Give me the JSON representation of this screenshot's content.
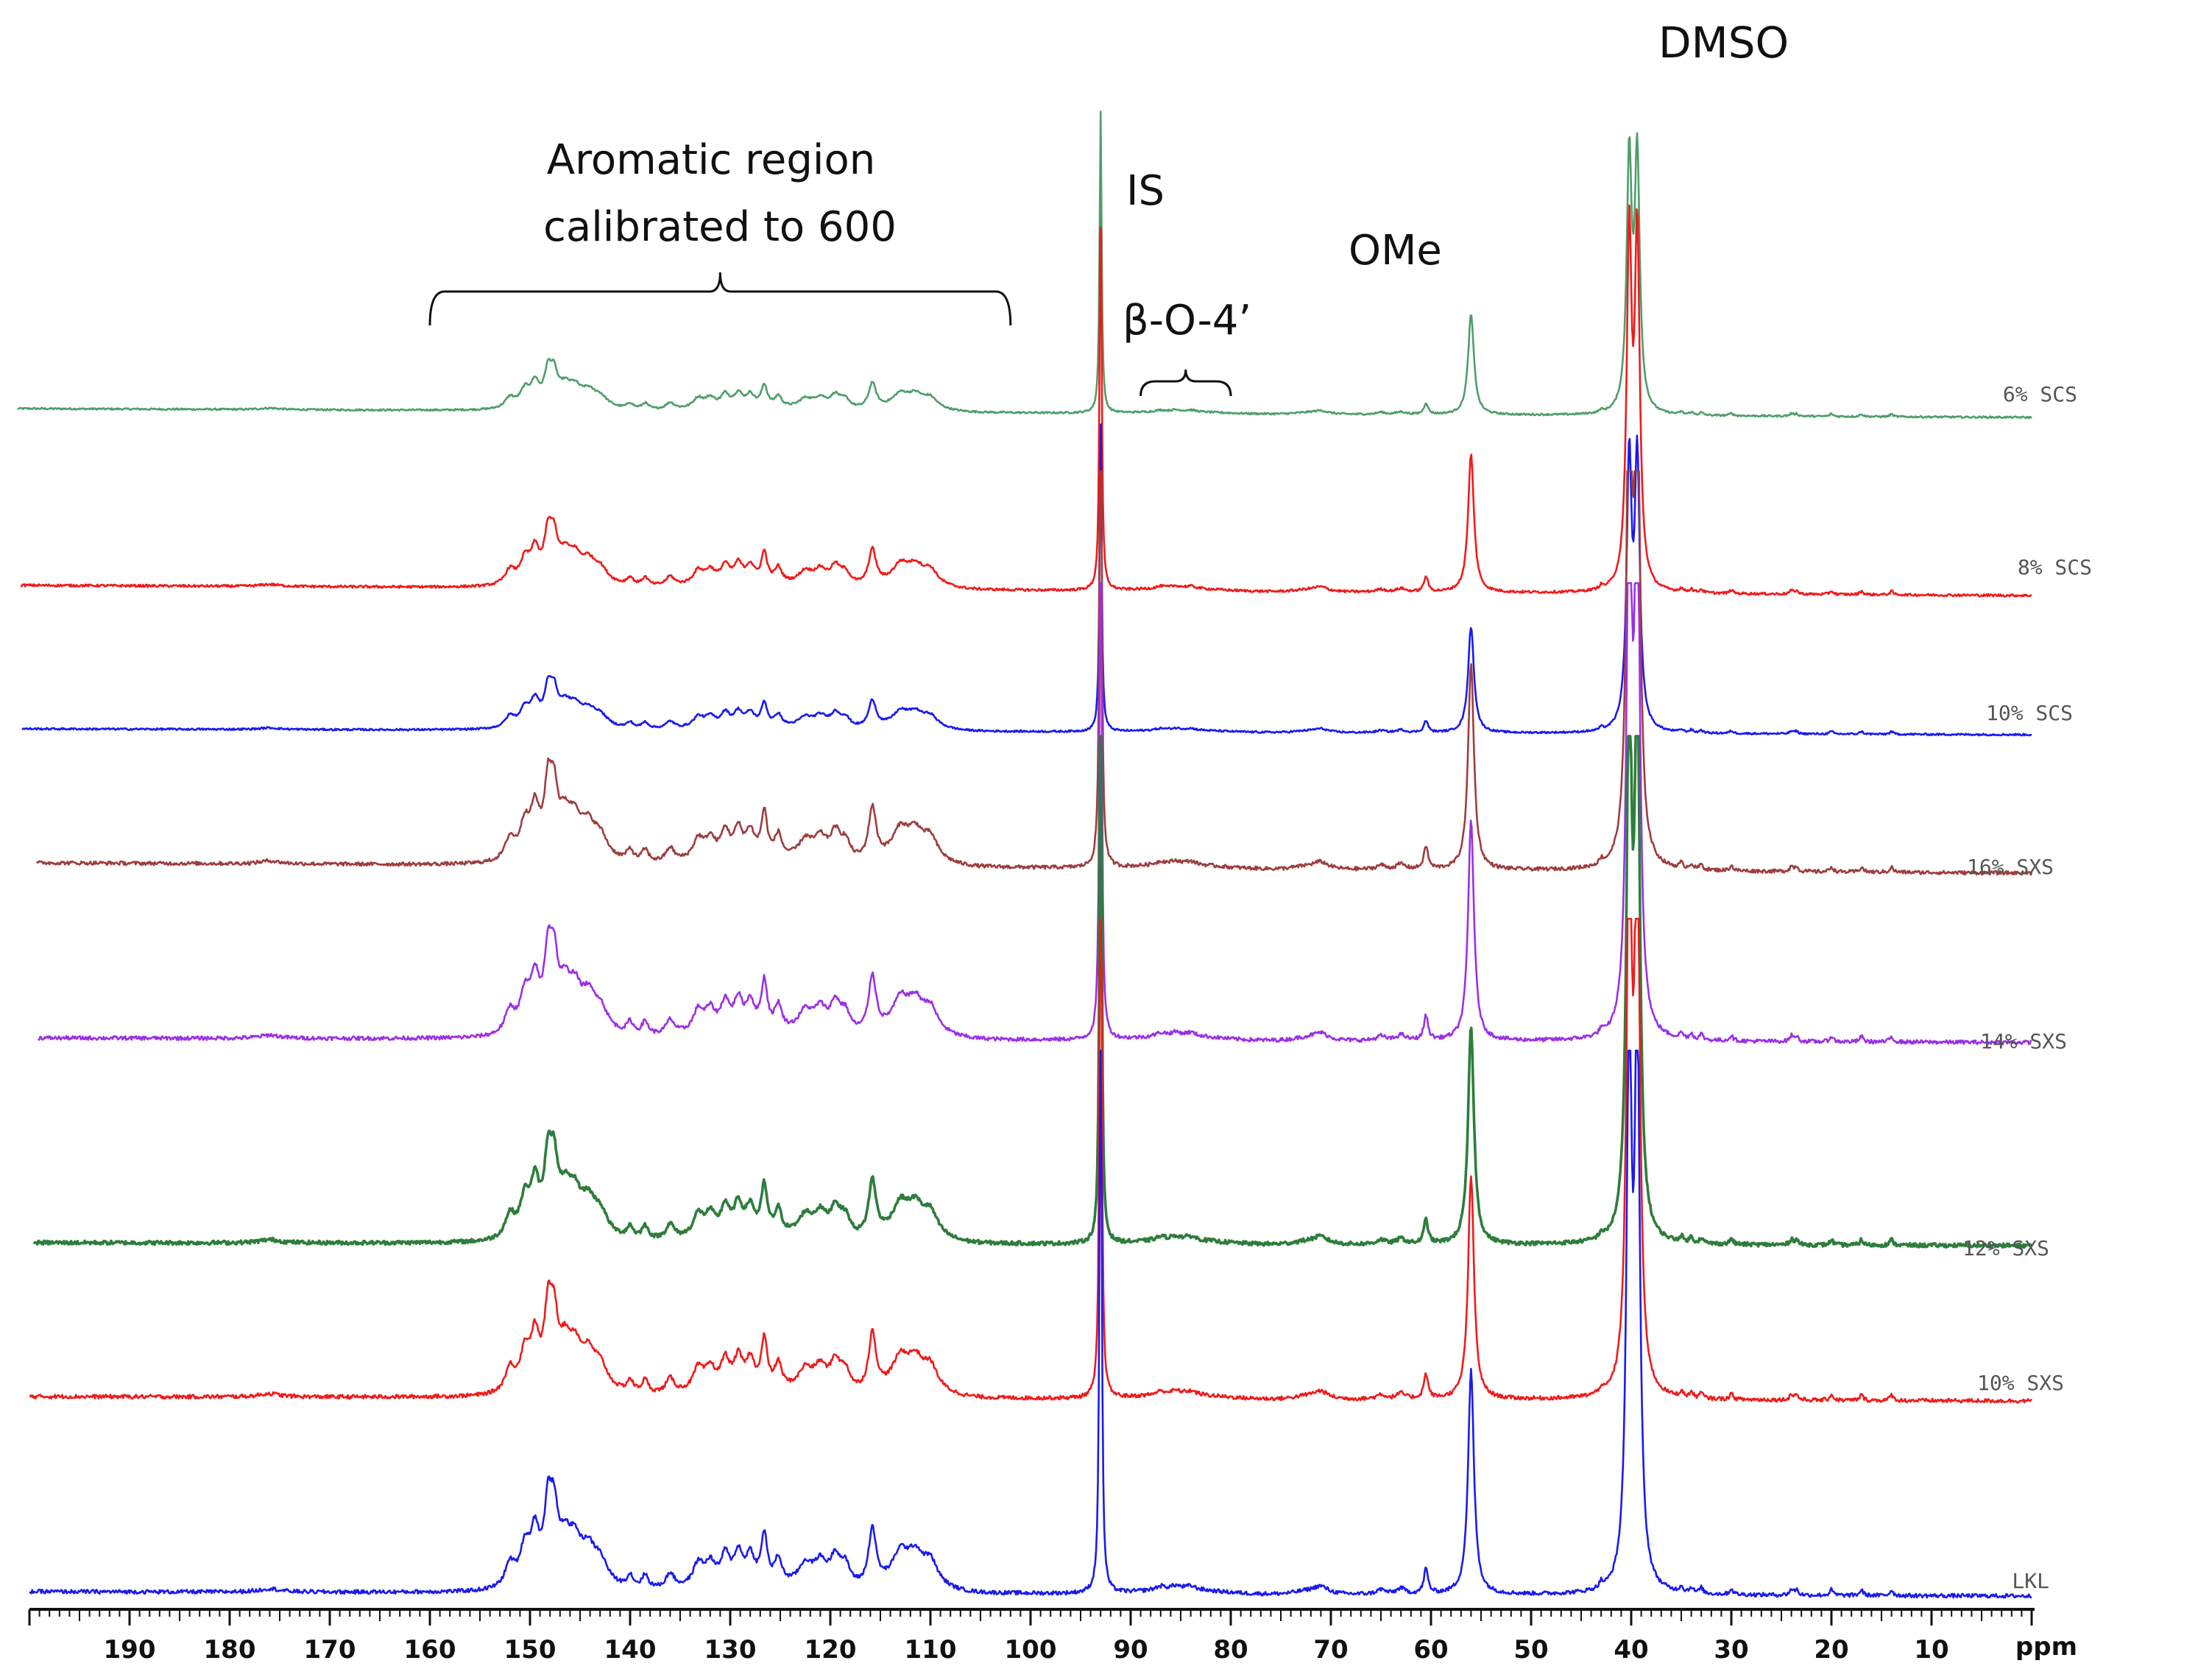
{
  "chart_data": {
    "type": "line",
    "title": "",
    "xlabel": "ppm",
    "ylabel": "",
    "x_axis": {
      "min": 0,
      "max": 200,
      "reversed": true,
      "major_ticks": [
        190,
        180,
        170,
        160,
        150,
        140,
        130,
        120,
        110,
        100,
        90,
        80,
        70,
        60,
        50,
        40,
        30,
        20,
        10
      ]
    },
    "grid": false,
    "stacked_offset": true,
    "annotations": [
      {
        "name": "aromatic-region",
        "text_lines": [
          "Aromatic region",
          "calibrated to 600"
        ],
        "x_range": [
          160,
          102
        ]
      },
      {
        "name": "is",
        "text": "IS",
        "x": 93
      },
      {
        "name": "beta-o-4",
        "text": "β-O-4’",
        "x_range": [
          89,
          80
        ]
      },
      {
        "name": "ome",
        "text": "OMe",
        "x": 56
      },
      {
        "name": "dmso",
        "text": "DMSO",
        "x": 39.5
      }
    ],
    "series": [
      {
        "name": "6% SCS",
        "color": "#4f9e6a",
        "rel_height": 0.62,
        "clipped": [
          "IS",
          "DMSO"
        ]
      },
      {
        "name": "8% SCS",
        "color": "#f01b1b",
        "rel_height": 0.72,
        "clipped": [
          "DMSO"
        ]
      },
      {
        "name": "10% SCS",
        "color": "#1a1af0",
        "rel_height": 0.6,
        "clipped": []
      },
      {
        "name": "16% SXS",
        "color": "#9e3d3d",
        "rel_height": 1.0,
        "clipped": [
          "IS",
          "OMe",
          "DMSO"
        ]
      },
      {
        "name": "14% SXS",
        "color": "#9b30e6",
        "rel_height": 1.0,
        "clipped": [
          "IS",
          "OMe",
          "DMSO"
        ]
      },
      {
        "name": "12% SXS",
        "color": "#2e7d3c",
        "rel_height": 0.9,
        "clipped": [
          "IS",
          "OMe",
          "DMSO"
        ]
      },
      {
        "name": "10% SXS",
        "color": "#f01b1b",
        "rel_height": 0.95,
        "clipped": [
          "IS",
          "OMe",
          "DMSO"
        ]
      },
      {
        "name": "LKL",
        "color": "#1a1af0",
        "rel_height": 0.95,
        "clipped": [
          "IS"
        ]
      }
    ],
    "peaks_ppm": {
      "aromatic": [
        152,
        150.5,
        149.5,
        148.2,
        147.6,
        146.5,
        145.5,
        144.2,
        143,
        140,
        138.5,
        136,
        133.2,
        132,
        130.5,
        129.2,
        128,
        126.6,
        125.2,
        122.5,
        121,
        119.5,
        118.5,
        115.8,
        113,
        111.5,
        110
      ],
      "is": 93,
      "beta_o_4": [
        87,
        85.5,
        84
      ],
      "other": [
        176,
        72,
        71,
        65,
        63,
        60.5
      ],
      "ome": 56,
      "dmso": [
        40.2,
        39.4
      ],
      "aliphatic": [
        43,
        35,
        34,
        33,
        30,
        24,
        23.5,
        20,
        17,
        14
      ]
    }
  }
}
